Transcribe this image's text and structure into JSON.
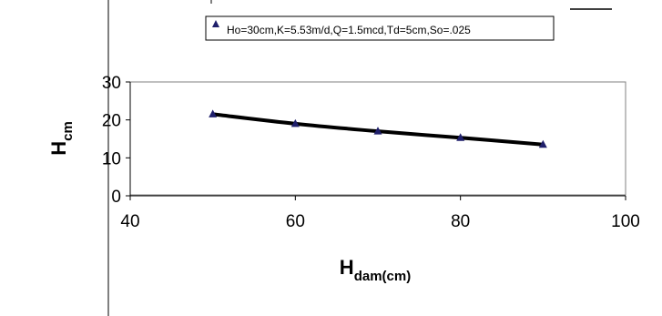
{
  "chart_data": {
    "type": "scatter",
    "title": "",
    "xlabel": {
      "main": "H",
      "sub": "dam(cm)"
    },
    "ylabel": {
      "main": "H",
      "sub": "cm"
    },
    "xlim": [
      40,
      100
    ],
    "ylim": [
      0,
      30
    ],
    "xticks": [
      "40",
      "60",
      "80",
      "100"
    ],
    "yticks": [
      "0",
      "10",
      "20",
      "30"
    ],
    "grid": false,
    "legend_position": "top",
    "series": [
      {
        "name": "Ho=30cm,K=5.53m/d,Q=1.5mcd,Td=5cm,So=.025",
        "marker": "triangle",
        "color": "#1f1f6b",
        "x": [
          50,
          60,
          70,
          80,
          90
        ],
        "y": [
          21.5,
          19.0,
          17.0,
          15.3,
          13.5
        ]
      }
    ],
    "trendline": {
      "color": "#000000",
      "x": [
        50,
        60,
        70,
        80,
        90
      ],
      "y": [
        21.5,
        19.0,
        17.0,
        15.3,
        13.5
      ]
    }
  }
}
